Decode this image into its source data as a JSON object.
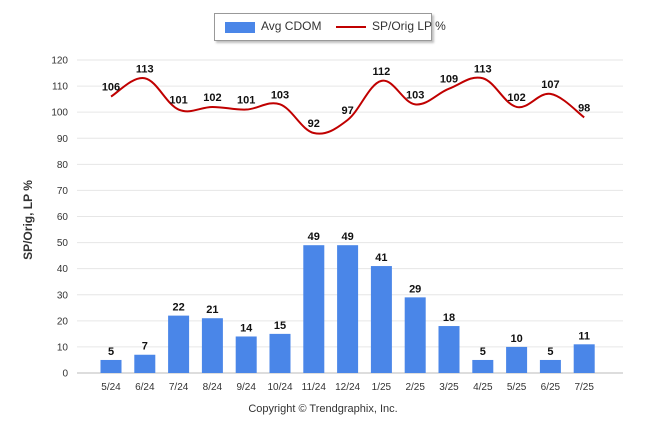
{
  "chart_data": {
    "type": "bar",
    "categories": [
      "5/24",
      "6/24",
      "7/24",
      "8/24",
      "9/24",
      "10/24",
      "11/24",
      "12/24",
      "1/25",
      "2/25",
      "3/25",
      "4/25",
      "5/25",
      "6/25",
      "7/25"
    ],
    "series": [
      {
        "name": "Avg CDOM",
        "type": "bar",
        "color": "#4a86e8",
        "values": [
          5,
          7,
          22,
          21,
          14,
          15,
          49,
          49,
          41,
          29,
          18,
          5,
          10,
          5,
          11
        ]
      },
      {
        "name": "SP/Orig LP %",
        "type": "line",
        "color": "#c00000",
        "values": [
          106,
          113,
          101,
          102,
          101,
          103,
          92,
          97,
          112,
          103,
          109,
          113,
          102,
          107,
          98
        ]
      }
    ],
    "ylabel": "SP/Orig, LP %",
    "ylim": [
      0,
      120
    ],
    "yticks": [
      0,
      10,
      20,
      30,
      40,
      50,
      60,
      70,
      80,
      90,
      100,
      110,
      120
    ],
    "grid": true,
    "legend": "top-center"
  },
  "footer": {
    "copyright": "Copyright © Trendgraphix, Inc."
  }
}
